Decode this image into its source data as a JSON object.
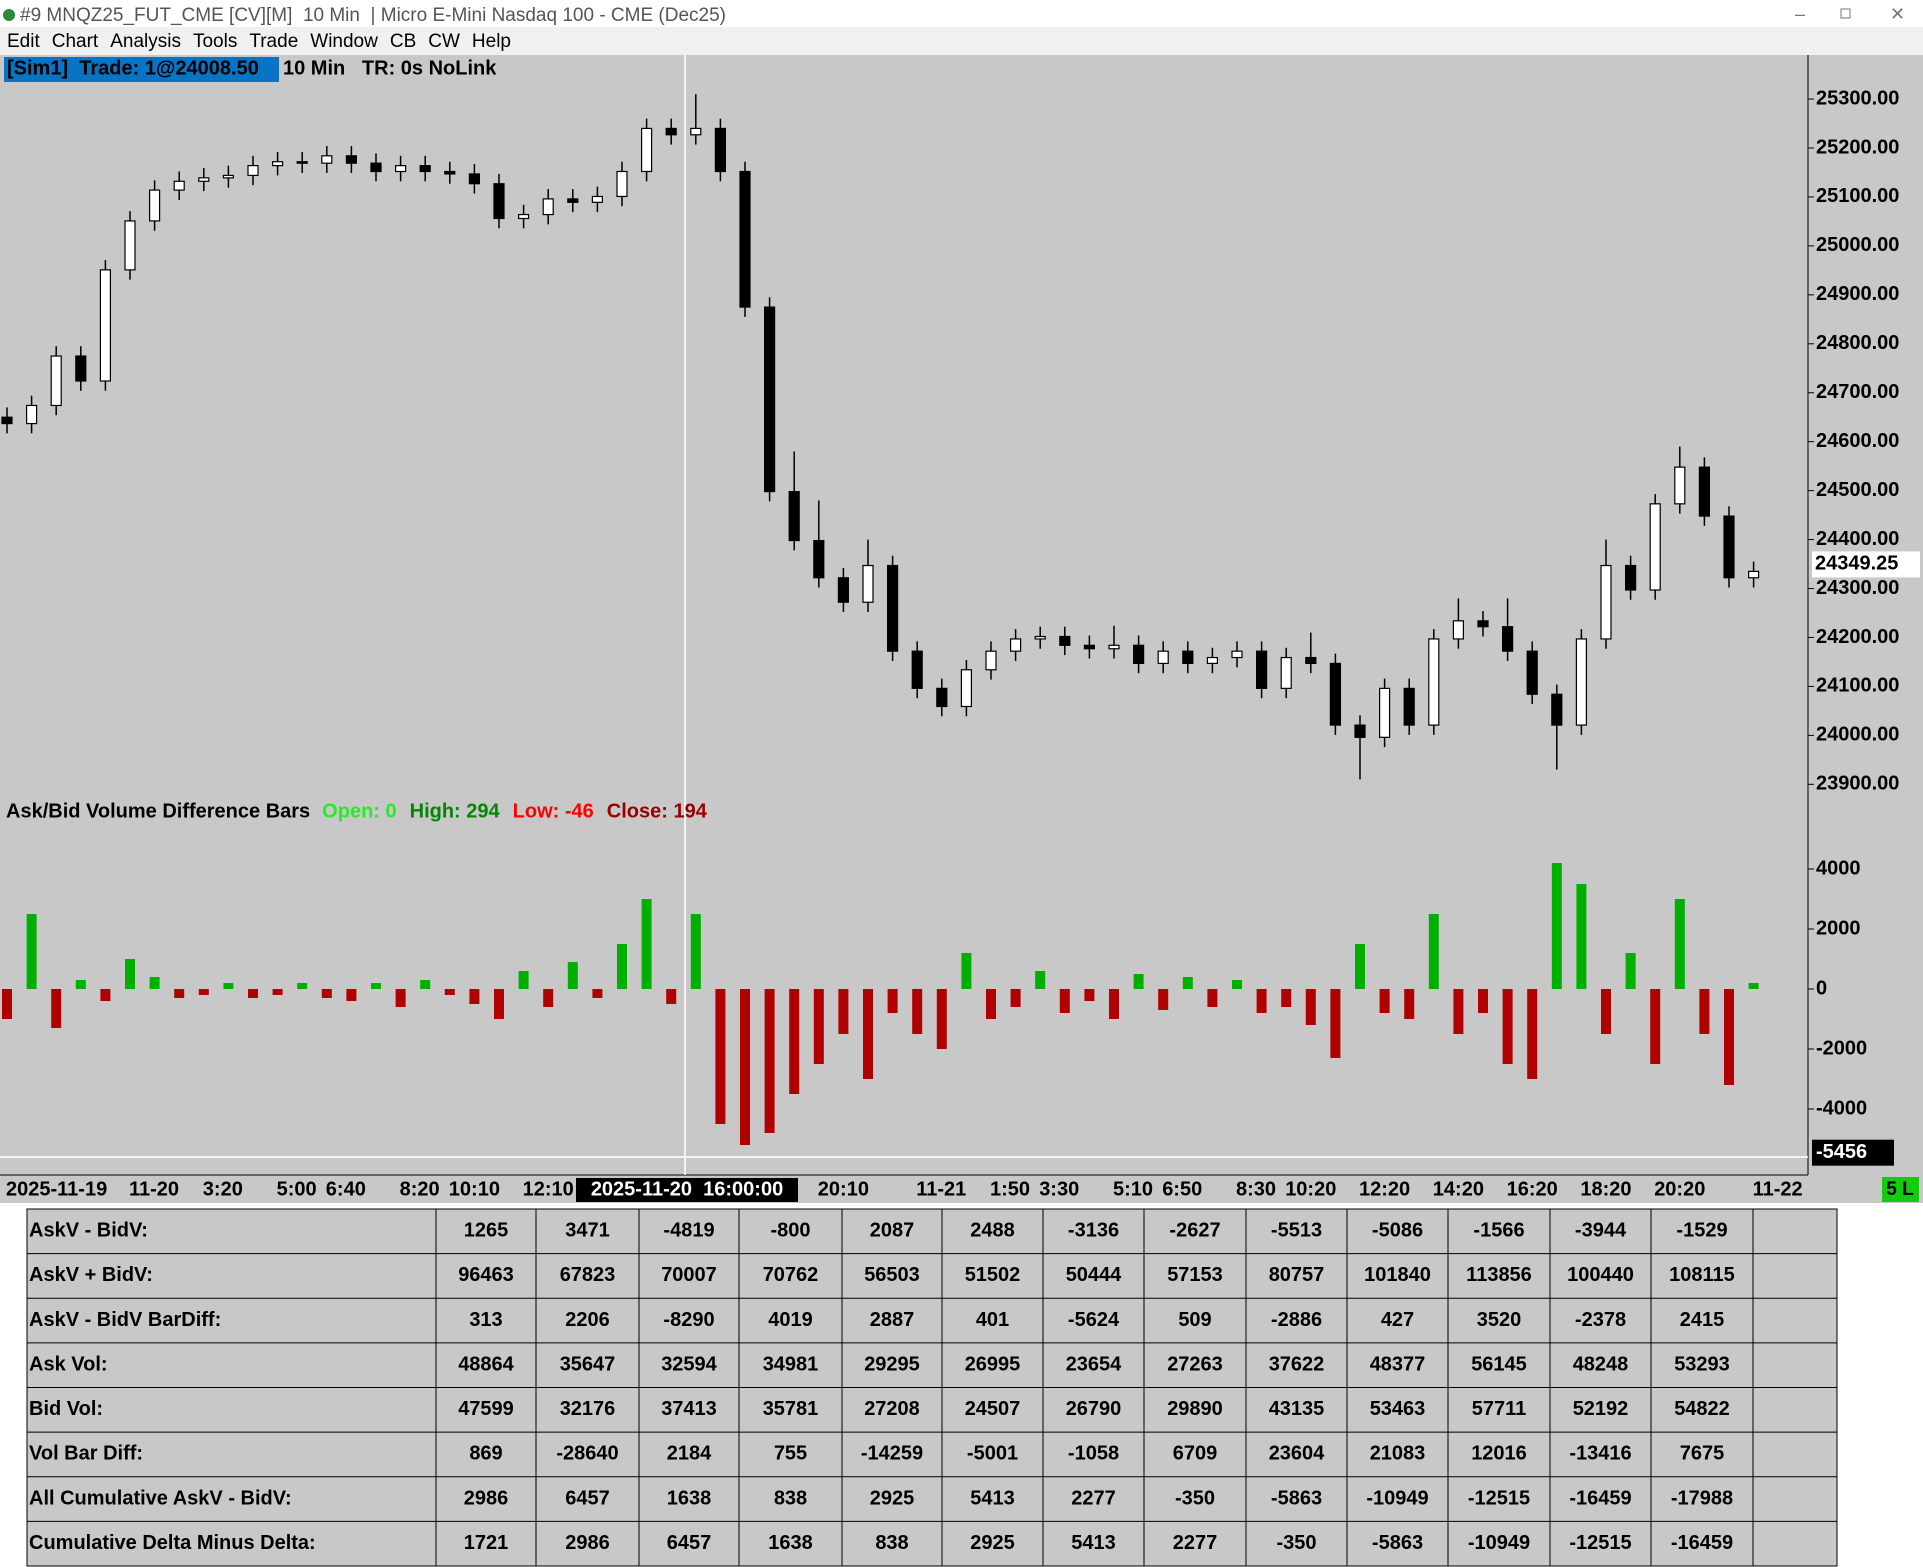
{
  "window": {
    "title": "#9 MNQZ25_FUT_CME [CV][M]  10 Min  | Micro E-Mini Nasdaq 100 - CME (Dec25)"
  },
  "menu": {
    "items": [
      "Edit",
      "Chart",
      "Analysis",
      "Tools",
      "Trade",
      "Window",
      "CB",
      "CW",
      "Help"
    ]
  },
  "header": {
    "account": "[Sim1]  Trade: 1@24008.50",
    "info": "10 Min   TR: 0s NoLink"
  },
  "cursor": {
    "label": "2025-11-20  16:00:00"
  },
  "status": {
    "label": "5 L"
  },
  "price_chart": {
    "type": "candlestick",
    "ylim": [
      23870,
      25390
    ],
    "yticks": [
      {
        "value": 23900,
        "label": "23900.00"
      },
      {
        "value": 24000,
        "label": "24000.00"
      },
      {
        "value": 24100,
        "label": "24100.00"
      },
      {
        "value": 24200,
        "label": "24200.00"
      },
      {
        "value": 24300,
        "label": "24300.00"
      },
      {
        "value": 24400,
        "label": "24400.00"
      },
      {
        "value": 24500,
        "label": "24500.00"
      },
      {
        "value": 24600,
        "label": "24600.00"
      },
      {
        "value": 24700,
        "label": "24700.00"
      },
      {
        "value": 24800,
        "label": "24800.00"
      },
      {
        "value": 24900,
        "label": "24900.00"
      },
      {
        "value": 25000,
        "label": "25000.00"
      },
      {
        "value": 25100,
        "label": "25100.00"
      },
      {
        "value": 25200,
        "label": "25200.00"
      },
      {
        "value": 25300,
        "label": "25300.00"
      }
    ],
    "last_price": {
      "value": 24349.25,
      "label": "24349.25"
    },
    "categories": [
      "2025-11-19",
      null,
      null,
      null,
      null,
      "11-20",
      null,
      null,
      "3:20",
      null,
      null,
      "5:00",
      null,
      "6:40",
      null,
      null,
      "8:20",
      null,
      "10:10",
      null,
      null,
      "12:10",
      null,
      null,
      null,
      null,
      null,
      null,
      null,
      null,
      null,
      null,
      null,
      "20:10",
      null,
      null,
      null,
      "11-21",
      null,
      null,
      "1:50",
      null,
      "3:30",
      null,
      null,
      "5:10",
      null,
      "6:50",
      null,
      null,
      "8:30",
      null,
      "10:20",
      null,
      null,
      "12:20",
      null,
      null,
      "14:20",
      null,
      null,
      "16:20",
      null,
      null,
      "18:20",
      null,
      null,
      "20:20",
      null,
      null,
      null,
      "11-22"
    ],
    "open": [
      24650,
      24637,
      24674,
      24775,
      24724,
      24951,
      25051,
      25114,
      25132,
      25139,
      25144,
      25164,
      25172,
      25169,
      25184,
      25169,
      25152,
      25164,
      25152,
      25147,
      25127,
      25056,
      25064,
      25096,
      25089,
      25101,
      25152,
      25240,
      25227,
      25240,
      25152,
      24875,
      24498,
      24398,
      24322,
      24272,
      24347,
      24172,
      24096,
      24059,
      24134,
      24172,
      24197,
      24202,
      24184,
      24177,
      24184,
      24147,
      24172,
      24147,
      24159,
      24172,
      24096,
      24159,
      24147,
      24021,
      23996,
      24096,
      24021,
      24197,
      24234,
      24222,
      24172,
      24084,
      24021,
      24197,
      24347,
      24297,
      24473,
      24548,
      24448,
      24322
    ],
    "high": [
      24670,
      24694,
      24795,
      24795,
      24971,
      25071,
      25134,
      25152,
      25159,
      25164,
      25184,
      25192,
      25192,
      25204,
      25204,
      25189,
      25184,
      25184,
      25172,
      25167,
      25147,
      25084,
      25116,
      25116,
      25121,
      25172,
      25260,
      25260,
      25310,
      25260,
      25172,
      24895,
      24580,
      24480,
      24342,
      24400,
      24367,
      24192,
      24116,
      24154,
      24192,
      24217,
      24222,
      24222,
      24204,
      24224,
      24204,
      24192,
      24192,
      24179,
      24192,
      24192,
      24179,
      24210,
      24167,
      24041,
      24116,
      24116,
      24217,
      24280,
      24254,
      24280,
      24192,
      24104,
      24217,
      24400,
      24367,
      24493,
      24590,
      24568,
      24468,
      24355
    ],
    "low": [
      24617,
      24617,
      24654,
      24704,
      24704,
      24931,
      25031,
      25094,
      25112,
      25119,
      25124,
      25144,
      25149,
      25149,
      25149,
      25132,
      25132,
      25132,
      25127,
      25107,
      25036,
      25036,
      25044,
      25069,
      25069,
      25081,
      25132,
      25207,
      25207,
      25132,
      24855,
      24478,
      24378,
      24302,
      24252,
      24252,
      24152,
      24076,
      24039,
      24039,
      24114,
      24152,
      24177,
      24164,
      24157,
      24157,
      24127,
      24127,
      24127,
      24127,
      24139,
      24076,
      24076,
      24127,
      24001,
      23910,
      23976,
      24001,
      24001,
      24177,
      24202,
      24152,
      24064,
      23930,
      24001,
      24177,
      24277,
      24277,
      24453,
      24428,
      24302,
      24302
    ],
    "close": [
      24637,
      24674,
      24775,
      24724,
      24951,
      25051,
      25114,
      25132,
      25139,
      25144,
      25164,
      25172,
      25169,
      25184,
      25169,
      25152,
      25164,
      25152,
      25147,
      25127,
      25056,
      25064,
      25096,
      25089,
      25101,
      25152,
      25240,
      25227,
      25240,
      25152,
      24875,
      24498,
      24398,
      24322,
      24272,
      24347,
      24172,
      24096,
      24059,
      24134,
      24172,
      24197,
      24202,
      24184,
      24177,
      24184,
      24147,
      24172,
      24147,
      24159,
      24172,
      24096,
      24159,
      24147,
      24021,
      23996,
      24096,
      24021,
      24197,
      24234,
      24222,
      24172,
      24084,
      24021,
      24197,
      24347,
      24297,
      24473,
      24548,
      24448,
      24322,
      24335
    ]
  },
  "study": {
    "type": "bar",
    "title": "Ask/Bid Volume Difference Bars",
    "legend": [
      {
        "text": "Open: 0",
        "color": "#22ee22"
      },
      {
        "text": "High: 294",
        "color": "#008800"
      },
      {
        "text": "Low: -46",
        "color": "#ff0000"
      },
      {
        "text": "Close: 194",
        "color": "#990000"
      }
    ],
    "ylim": [
      -5800,
      5300
    ],
    "yticks": [
      4000,
      2000,
      0,
      -2000,
      -4000
    ],
    "marker": {
      "value": -5456,
      "label": "-5456"
    },
    "up_color": "#00b000",
    "down_color": "#b00000",
    "values": [
      -1000,
      2500,
      -1300,
      300,
      -400,
      1000,
      400,
      -300,
      -200,
      200,
      -300,
      -200,
      200,
      -300,
      -400,
      200,
      -600,
      300,
      -200,
      -500,
      -1000,
      600,
      -600,
      900,
      -300,
      1500,
      3000,
      -500,
      2500,
      -4500,
      -5200,
      -4800,
      -3500,
      -2500,
      -1500,
      -3000,
      -800,
      -1500,
      -2000,
      1200,
      -1000,
      -600,
      600,
      -800,
      -400,
      -1000,
      500,
      -700,
      400,
      -600,
      300,
      -800,
      -600,
      -1200,
      -2300,
      1500,
      -800,
      -1000,
      2500,
      -1500,
      -800,
      -2500,
      -3000,
      4200,
      3500,
      -1500,
      1200,
      -2500,
      3000,
      -1500,
      -3200,
      200
    ]
  },
  "table": {
    "rows": [
      {
        "label": "AskV - BidV:",
        "values": [
          1265,
          3471,
          -4819,
          -800,
          2087,
          2488,
          -3136,
          -2627,
          -5513,
          -5086,
          -1566,
          -3944,
          -1529
        ]
      },
      {
        "label": "AskV + BidV:",
        "values": [
          96463,
          67823,
          70007,
          70762,
          56503,
          51502,
          50444,
          57153,
          80757,
          101840,
          113856,
          100440,
          108115
        ]
      },
      {
        "label": "AskV - BidV BarDiff:",
        "values": [
          313,
          2206,
          -8290,
          4019,
          2887,
          401,
          -5624,
          509,
          -2886,
          427,
          3520,
          -2378,
          2415
        ]
      },
      {
        "label": "Ask Vol:",
        "values": [
          48864,
          35647,
          32594,
          34981,
          29295,
          26995,
          23654,
          27263,
          37622,
          48377,
          56145,
          48248,
          53293
        ]
      },
      {
        "label": "Bid Vol:",
        "values": [
          47599,
          32176,
          37413,
          35781,
          27208,
          24507,
          26790,
          29890,
          43135,
          53463,
          57711,
          52192,
          54822
        ]
      },
      {
        "label": "Vol Bar Diff:",
        "values": [
          869,
          -28640,
          2184,
          755,
          -14259,
          -5001,
          -1058,
          6709,
          23604,
          21083,
          12016,
          -13416,
          7675
        ]
      },
      {
        "label": "All Cumulative AskV - BidV:",
        "values": [
          2986,
          6457,
          1638,
          838,
          2925,
          5413,
          2277,
          -350,
          -5863,
          -10949,
          -12515,
          -16459,
          -17988
        ]
      },
      {
        "label": "Cumulative Delta Minus Delta:",
        "values": [
          1721,
          2986,
          6457,
          1638,
          838,
          2925,
          5413,
          2277,
          -350,
          -5863,
          -10949,
          -12515,
          -16459
        ]
      }
    ]
  }
}
